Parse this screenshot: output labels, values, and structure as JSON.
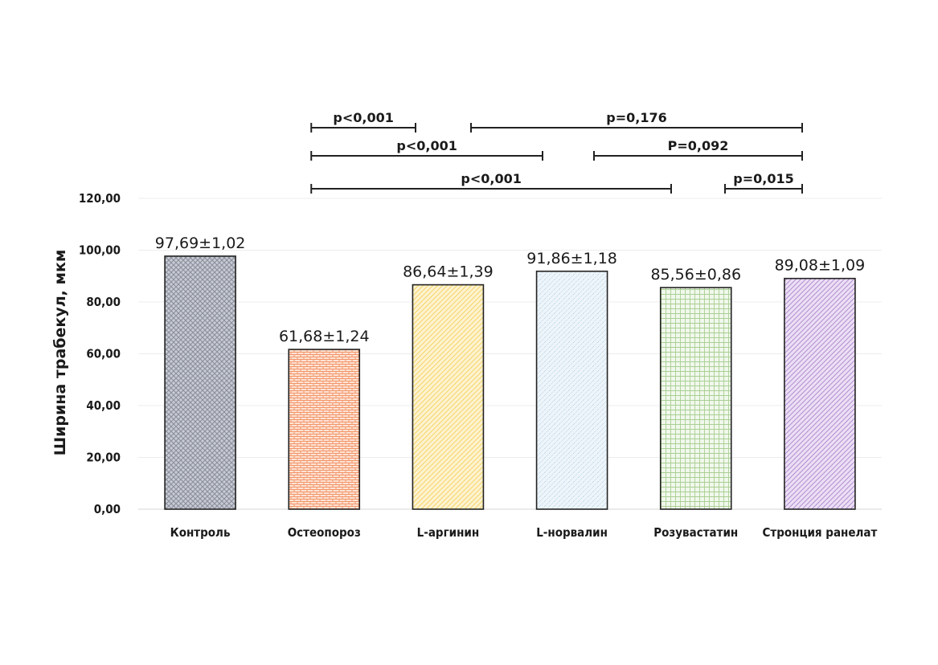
{
  "chart_data": {
    "type": "bar",
    "ylabel": "Ширина трабекул, мкм",
    "ylim": [
      0,
      120
    ],
    "y_ticks": [
      "0,00",
      "20,00",
      "40,00",
      "60,00",
      "80,00",
      "100,00",
      "120,00"
    ],
    "grid": true,
    "categories": [
      "Контроль",
      "Остеопороз",
      "L-аргинин",
      "L-норвалин",
      "Розувастатин",
      "Стронция ранелат"
    ],
    "values": [
      97.69,
      61.68,
      86.64,
      91.86,
      85.56,
      89.08
    ],
    "errors": [
      1.02,
      1.24,
      1.39,
      1.18,
      0.86,
      1.09
    ],
    "data_labels": [
      "97,69±1,02",
      "61,68±1,24",
      "86,64±1,39",
      "91,86±1,18",
      "85,56±0,86",
      "89,08±1,09"
    ],
    "bar_colors": [
      "#8a8f9c",
      "#f2956a",
      "#f7d46a",
      "#9fc3dd",
      "#a9cf94",
      "#b48fd0"
    ],
    "bar_backgrounds": [
      "#c8cbd3",
      "#fde3d4",
      "#fdf3d0",
      "#eef5fa",
      "#f1f8ec",
      "#ebdff5"
    ],
    "comparisons": [
      {
        "from": 1,
        "to": 2,
        "label": "p<0,001"
      },
      {
        "from": 2,
        "to": 5,
        "label": "p=0,176"
      },
      {
        "from": 1,
        "to": 3,
        "label": "p<0,001"
      },
      {
        "from": 3,
        "to": 5,
        "label": "P=0,092"
      },
      {
        "from": 1,
        "to": 4,
        "label": "p<0,001"
      },
      {
        "from": 4,
        "to": 5,
        "label": "p=0,015"
      }
    ]
  }
}
